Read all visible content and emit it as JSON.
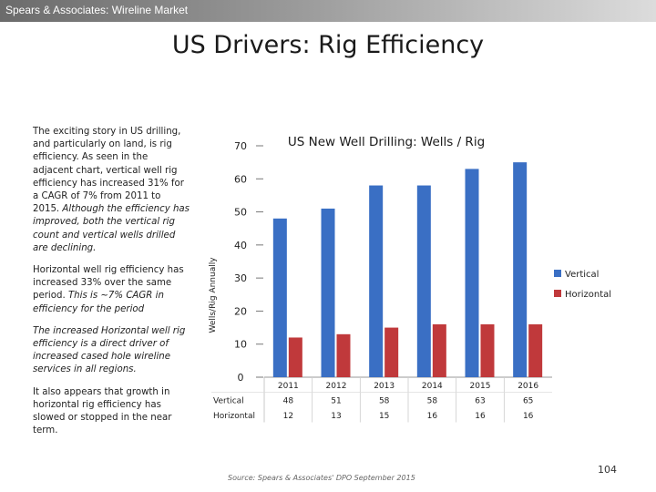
{
  "header": {
    "label": "Spears & Associates:  Wireline Market"
  },
  "slide": {
    "title": "US Drivers:  Rig Efficiency"
  },
  "text": {
    "p1": "The exciting story in US drilling, and particularly on land, is rig efficiency. As seen in the adjacent chart, vertical well rig efficiency has increased 31% for a CAGR of 7% from 2011 to 2015.",
    "p1_italic": "Although the efficiency has improved, both the vertical rig count and vertical wells drilled are declining.",
    "p2": "Horizontal well rig efficiency has increased 33% over the same period.",
    "p2_italic": "This is ~7% CAGR in efficiency for the period",
    "p3": "The increased Horizontal well rig efficiency is a direct driver of increased cased hole wireline services in all regions.",
    "p4": "It also appears that growth in horizontal rig efficiency has slowed or stopped in the near term."
  },
  "chart_data": {
    "type": "bar",
    "title": "US New Well Drilling: Wells / Rig",
    "ylabel": "Wells/Rig Annually",
    "xlabel": "",
    "categories": [
      "2011",
      "2012",
      "2013",
      "2014",
      "2015",
      "2016"
    ],
    "series": [
      {
        "name": "Vertical",
        "values": [
          48,
          51,
          58,
          58,
          63,
          65
        ],
        "color": "#3a6fc4"
      },
      {
        "name": "Horizontal",
        "values": [
          12,
          13,
          15,
          16,
          16,
          16
        ],
        "color": "#c0393b"
      }
    ],
    "ylim": [
      0,
      70
    ],
    "yticks": [
      "0",
      "10",
      "20",
      "30",
      "40",
      "50",
      "60",
      "70"
    ],
    "legend": "right",
    "grid": false,
    "table": {
      "rows": [
        {
          "label": "Vertical",
          "values": [
            "48",
            "51",
            "58",
            "58",
            "63",
            "65"
          ]
        },
        {
          "label": "Horizontal",
          "values": [
            "12",
            "13",
            "15",
            "16",
            "16",
            "16"
          ]
        }
      ]
    }
  },
  "footer": {
    "source": "Source: Spears & Associates' DPO September 2015",
    "page_number": "104"
  }
}
